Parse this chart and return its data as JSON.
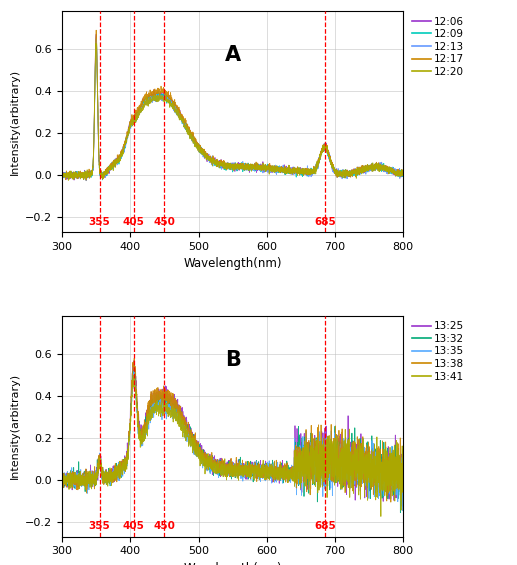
{
  "title_A": "A",
  "title_B": "B",
  "xlabel": "Wavelength(nm)",
  "ylabel": "Intensity(arbitrary)",
  "xlim": [
    300,
    800
  ],
  "ylim": [
    -0.27,
    0.78
  ],
  "vlines": [
    355,
    405,
    450,
    685
  ],
  "vline_labels": [
    "355",
    "405",
    "450",
    "685"
  ],
  "yticks": [
    -0.2,
    0.0,
    0.2,
    0.4,
    0.6
  ],
  "xticks": [
    300,
    400,
    500,
    600,
    700,
    800
  ],
  "legend_A": [
    "12:06",
    "12:09",
    "12:13",
    "12:17",
    "12:20"
  ],
  "legend_B": [
    "13:25",
    "13:32",
    "13:35",
    "13:38",
    "13:41"
  ],
  "colors_A": [
    "#9933cc",
    "#00ccbb",
    "#6699ff",
    "#cc8800",
    "#aaaa00"
  ],
  "colors_B": [
    "#9933cc",
    "#00aa77",
    "#55aaff",
    "#cc8800",
    "#aaaa00"
  ],
  "background_color": "#ffffff",
  "grid_color": "#bbbbbb",
  "vline_color": "red",
  "vline_label_color": "red"
}
